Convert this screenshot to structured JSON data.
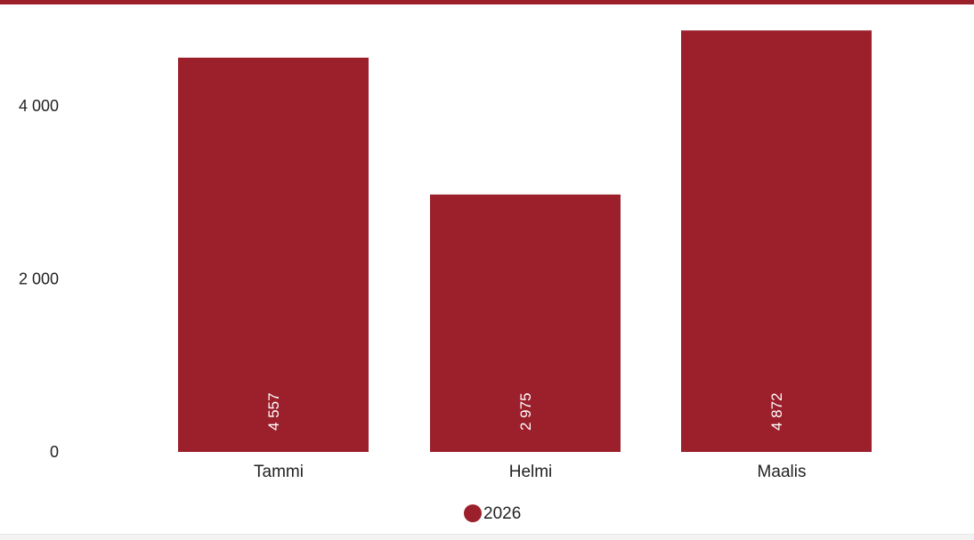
{
  "chart_data": {
    "type": "bar",
    "categories": [
      "Tammi",
      "Helmi",
      "Maalis"
    ],
    "series": [
      {
        "name": "2026",
        "values": [
          4557,
          2975,
          4872
        ],
        "value_labels": [
          "4 557",
          "2 975",
          "4 872"
        ]
      }
    ],
    "title": "",
    "xlabel": "",
    "ylabel": "",
    "ylim": [
      0,
      5000
    ],
    "yticks": [
      0,
      2000,
      4000
    ],
    "ytick_labels": [
      "0",
      "2 000",
      "4 000"
    ],
    "grid": false,
    "legend": "bottom-center",
    "colors": {
      "bar": "#9b202c",
      "top_bar": "#9b202c"
    }
  }
}
